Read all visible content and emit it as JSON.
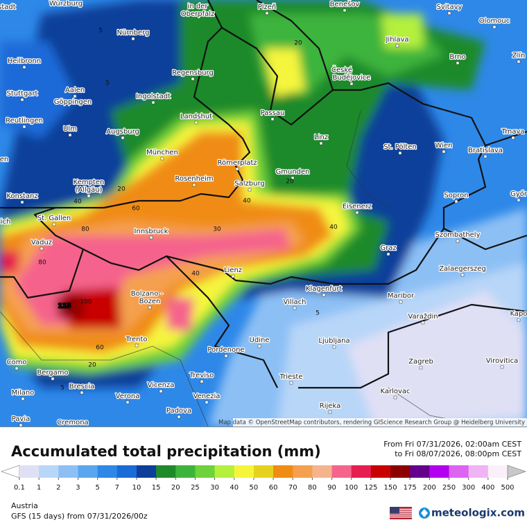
{
  "map": {
    "cities": [
      "armstadt",
      "Würzburg",
      "in der",
      "Oberpfalz",
      "Plzeň",
      "Benešov",
      "Svitavy",
      "Olomouc",
      "Nürnberg",
      "Jihlava",
      "Zlín",
      "Heilbronn",
      "Brno",
      "České",
      "Budějovice",
      "Regensburg",
      "Aalen",
      "Stuttgart",
      "Ingolstadt",
      "Göppingen",
      "Passau",
      "Landshut",
      "Reutlingen",
      "Trnava",
      "Ulm",
      "Augsburg",
      "Linz",
      "St. Pölten",
      "Wien",
      "Bratislava",
      "München",
      "Römerplatz",
      "Gmunden",
      "en",
      "Kempten",
      "(Allgäu)",
      "Rosenheim",
      "Salzburg",
      "Győr",
      "Konstanz",
      "Sopron",
      "Eisenerz",
      "St. Gallen",
      "ich",
      "Innsbruck",
      "Szombathely",
      "Vaduz",
      "Graz",
      "Lienz",
      "Zalaegerszeg",
      "Klagenfurt",
      "Bolzano -",
      "Bozen",
      "Maribor",
      "Villach",
      "Kapo",
      "Varaždin",
      "Trento",
      "Udine",
      "Ljubljana",
      "Como",
      "Pordenone",
      "Zagreb",
      "Virovitica",
      "Bergamo",
      "Treviso",
      "Trieste",
      "Brescia",
      "Vicenza",
      "Karlovac",
      "Milano",
      "Verona",
      "Venezia",
      "Rijeka",
      "Padova",
      "Pavia",
      "Cremona"
    ],
    "contour_labels": [
      "5",
      "5",
      "20",
      "40",
      "60",
      "80",
      "30",
      "40",
      "40",
      "20",
      "20",
      "80",
      "40",
      "100",
      "115",
      "60",
      "20",
      "5",
      "5"
    ],
    "attribution": "Map data © OpenStreetMap contributors, rendering GIScience Research Group @ Heidelberg University"
  },
  "header": {
    "title": "Accumulated total precipitation (mm)",
    "date_from": "From Fri 07/31/2026, 02:00am CEST",
    "date_to": "to Fri 08/07/2026, 08:00pm CEST"
  },
  "legend": {
    "ticks": [
      0.1,
      1,
      2,
      3,
      5,
      7,
      10,
      15,
      20,
      25,
      30,
      40,
      50,
      60,
      70,
      80,
      90,
      100,
      125,
      150,
      175,
      200,
      250,
      300,
      400,
      500
    ],
    "colors": [
      "#e0e0f5",
      "#b8d6f8",
      "#8cc0f5",
      "#5aa5f0",
      "#2e88e8",
      "#1a6bd8",
      "#0d3f9a",
      "#1e8a2a",
      "#3cb43c",
      "#6ed23a",
      "#b4f03c",
      "#f5f53c",
      "#e6d21e",
      "#f08c14",
      "#f5a050",
      "#f5b48c",
      "#f5648c",
      "#e61e50",
      "#c80000",
      "#8c0000",
      "#64008c",
      "#b400f0",
      "#dc64f0",
      "#f0b4f5",
      "#faf0fa"
    ],
    "below_color": "#ffffff",
    "above_color": "#c8c8c8"
  },
  "footer": {
    "region": "Austria",
    "model": "GFS (15 days) from  07/31/2026/00z",
    "brand": "meteologix.com"
  }
}
